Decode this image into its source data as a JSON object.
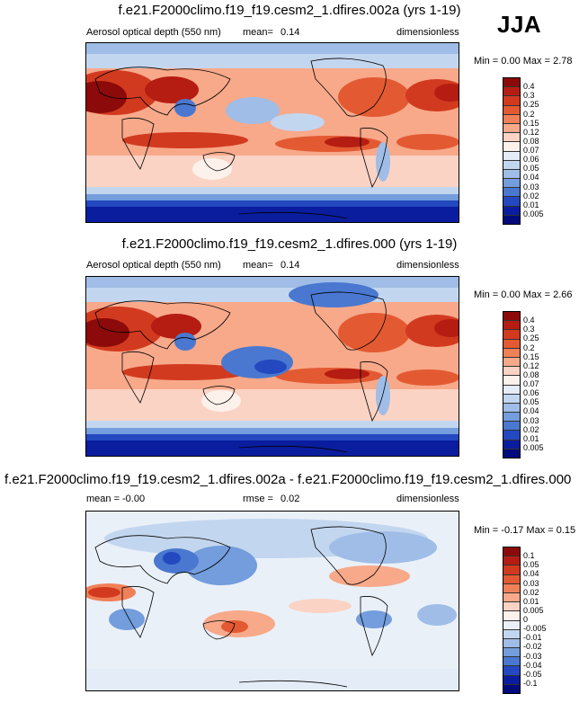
{
  "season_label": "JJA",
  "panels": [
    {
      "title": "f.e21.F2000climo.f19_f19.cesm2_1.dfires.002a (yrs 1-19)",
      "left_label": "Aerosol optical depth (550 nm)",
      "stat_label": "mean=",
      "stat_value": "0.14",
      "units": "dimensionless",
      "min_label": "Min =",
      "min_value": "0.00",
      "max_label": "Max =",
      "max_value": "2.78"
    },
    {
      "title": "f.e21.F2000climo.f19_f19.cesm2_1.dfires.000 (yrs 1-19)",
      "left_label": "Aerosol optical depth (550 nm)",
      "stat_label": "mean=",
      "stat_value": "0.14",
      "units": "dimensionless",
      "min_label": "Min =",
      "min_value": "0.00",
      "max_label": "Max =",
      "max_value": "2.66"
    },
    {
      "title": "f.e21.F2000climo.f19_f19.cesm2_1.dfires.002a - f.e21.F2000climo.f19_f19.cesm2_1.dfires.000",
      "left_label": "mean =",
      "left_value": "-0.00",
      "stat_label": "rmse =",
      "stat_value": "0.02",
      "units": "dimensionless",
      "min_label": "Min =",
      "min_value": "-0.17",
      "max_label": "Max =",
      "max_value": "0.15"
    }
  ],
  "colorbar_aod": {
    "labels": [
      "0.4",
      "0.3",
      "0.25",
      "0.2",
      "0.15",
      "0.12",
      "0.08",
      "0.07",
      "0.06",
      "0.05",
      "0.04",
      "0.03",
      "0.02",
      "0.01",
      "0.005"
    ],
    "colors": [
      "#8c0a0a",
      "#b51d12",
      "#d23a1f",
      "#e35a32",
      "#f08058",
      "#f7a98a",
      "#fbd3c4",
      "#fdf1ec",
      "#e3ecf7",
      "#c3d6ef",
      "#9fbde6",
      "#739ddc",
      "#4a78d0",
      "#2348c0",
      "#0a1d9e",
      "#020a7c"
    ]
  },
  "colorbar_diff": {
    "labels": [
      "0.1",
      "0.05",
      "0.04",
      "0.03",
      "0.02",
      "0.01",
      "0.005",
      "0",
      "-0.005",
      "-0.01",
      "-0.02",
      "-0.03",
      "-0.04",
      "-0.05",
      "-0.1"
    ],
    "colors": [
      "#8c0a0a",
      "#b51d12",
      "#d23a1f",
      "#e35a32",
      "#f08058",
      "#f7a98a",
      "#fbd3c4",
      "#fdf1ec",
      "#eaf0f8",
      "#c3d6ef",
      "#9fbde6",
      "#739ddc",
      "#4a78d0",
      "#2348c0",
      "#0a1d9e",
      "#020a7c"
    ]
  },
  "chart_data": [
    {
      "type": "heatmap",
      "title": "f.e21.F2000climo.f19_f19.cesm2_1.dfires.002a (yrs 1-19)",
      "variable": "Aerosol optical depth (550 nm)",
      "units": "dimensionless",
      "mean": 0.14,
      "min": 0.0,
      "max": 2.78,
      "contour_levels": [
        0.005,
        0.01,
        0.02,
        0.03,
        0.04,
        0.05,
        0.06,
        0.07,
        0.08,
        0.12,
        0.15,
        0.2,
        0.25,
        0.3,
        0.4
      ]
    },
    {
      "type": "heatmap",
      "title": "f.e21.F2000climo.f19_f19.cesm2_1.dfires.000 (yrs 1-19)",
      "variable": "Aerosol optical depth (550 nm)",
      "units": "dimensionless",
      "mean": 0.14,
      "min": 0.0,
      "max": 2.66,
      "contour_levels": [
        0.005,
        0.01,
        0.02,
        0.03,
        0.04,
        0.05,
        0.06,
        0.07,
        0.08,
        0.12,
        0.15,
        0.2,
        0.25,
        0.3,
        0.4
      ]
    },
    {
      "type": "heatmap",
      "title": "f.e21.F2000climo.f19_f19.cesm2_1.dfires.002a - f.e21.F2000climo.f19_f19.cesm2_1.dfires.000",
      "units": "dimensionless",
      "mean": -0.0,
      "rmse": 0.02,
      "min": -0.17,
      "max": 0.15,
      "contour_levels": [
        -0.1,
        -0.05,
        -0.04,
        -0.03,
        -0.02,
        -0.01,
        -0.005,
        0,
        0.005,
        0.01,
        0.02,
        0.03,
        0.04,
        0.05,
        0.1
      ]
    }
  ]
}
